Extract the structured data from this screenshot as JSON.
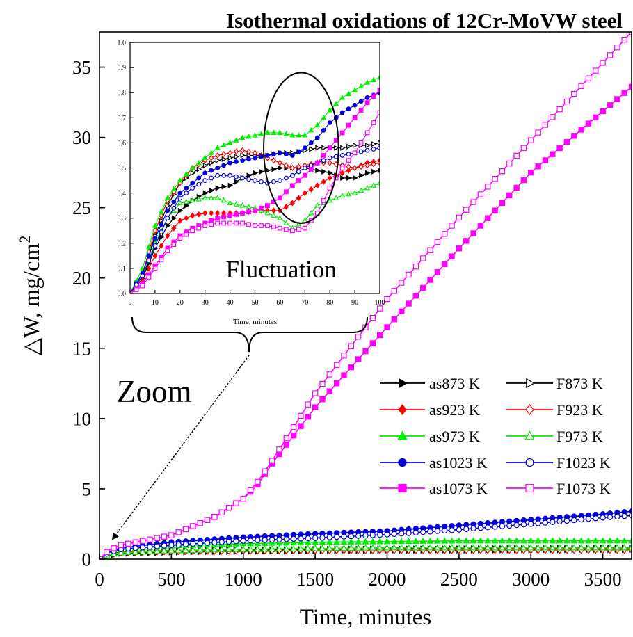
{
  "chart_data": [
    {
      "type": "line",
      "title": "Isothermal oxidations of 12Cr-MoVW steel",
      "xlabel": "Time, minutes",
      "ylabel": "△W, mg/cm",
      "ylabel_sup": "2",
      "xlim": [
        0,
        3700
      ],
      "ylim": [
        0,
        37.5
      ],
      "xticks": [
        0,
        500,
        1000,
        1500,
        2000,
        2500,
        3000,
        3500
      ],
      "yticks": [
        0,
        5,
        10,
        15,
        20,
        25,
        30,
        35
      ],
      "legend_position": "lower-right",
      "series": [
        {
          "name": "as873 K",
          "color": "#000000",
          "marker": "triangle-right",
          "filled": true,
          "x": [
            0,
            60,
            150,
            500,
            1000,
            1500,
            2000,
            2500,
            3000,
            3700
          ],
          "y": [
            0,
            0.25,
            0.4,
            0.5,
            0.55,
            0.6,
            0.62,
            0.64,
            0.66,
            0.68
          ]
        },
        {
          "name": "F873 K",
          "color": "#000000",
          "marker": "triangle-right",
          "filled": false,
          "x": [
            0,
            60,
            150,
            500,
            1000,
            1500,
            2000,
            2500,
            3000,
            3700
          ],
          "y": [
            0,
            0.3,
            0.5,
            0.6,
            0.66,
            0.7,
            0.72,
            0.74,
            0.76,
            0.78
          ]
        },
        {
          "name": "as923 K",
          "color": "#ff0000",
          "marker": "diamond",
          "filled": true,
          "x": [
            0,
            60,
            150,
            500,
            1000,
            1500,
            2000,
            2500,
            3000,
            3700
          ],
          "y": [
            0,
            0.3,
            0.45,
            0.55,
            0.6,
            0.64,
            0.67,
            0.7,
            0.72,
            0.74
          ]
        },
        {
          "name": "F923 K",
          "color": "#ff0000",
          "marker": "diamond",
          "filled": false,
          "x": [
            0,
            60,
            150,
            500,
            1000,
            1500,
            2000,
            2500,
            3000,
            3700
          ],
          "y": [
            0,
            0.3,
            0.5,
            0.56,
            0.6,
            0.62,
            0.63,
            0.64,
            0.64,
            0.65
          ]
        },
        {
          "name": "as973 K",
          "color": "#00ee00",
          "marker": "triangle-up",
          "filled": true,
          "x": [
            0,
            60,
            150,
            500,
            1000,
            1500,
            2000,
            2500,
            3000,
            3700
          ],
          "y": [
            0,
            0.45,
            0.7,
            0.95,
            1.1,
            1.2,
            1.25,
            1.3,
            1.3,
            1.3
          ]
        },
        {
          "name": "F973 K",
          "color": "#00ee00",
          "marker": "triangle-up",
          "filled": false,
          "x": [
            0,
            60,
            150,
            500,
            1000,
            1500,
            2000,
            2500,
            3000,
            3700
          ],
          "y": [
            0,
            0.3,
            0.45,
            0.6,
            0.7,
            0.75,
            0.8,
            0.8,
            0.8,
            0.8
          ]
        },
        {
          "name": "as1023 K",
          "color": "#0000dd",
          "marker": "circle",
          "filled": true,
          "x": [
            0,
            60,
            150,
            500,
            1000,
            1500,
            2000,
            2500,
            3000,
            3500,
            3700
          ],
          "y": [
            0,
            0.5,
            0.8,
            1.2,
            1.55,
            1.8,
            2.0,
            2.4,
            2.8,
            3.2,
            3.4
          ]
        },
        {
          "name": "F1023 K",
          "color": "#0000dd",
          "marker": "circle",
          "filled": false,
          "x": [
            0,
            60,
            150,
            500,
            1000,
            1500,
            2000,
            2500,
            3000,
            3500,
            3700
          ],
          "y": [
            0,
            0.45,
            0.7,
            1.0,
            1.3,
            1.5,
            1.75,
            2.1,
            2.5,
            2.95,
            3.1
          ]
        },
        {
          "name": "as1073 K",
          "color": "#ff00ff",
          "marker": "square",
          "filled": true,
          "x": [
            0,
            60,
            150,
            500,
            800,
            1000,
            1100,
            1200,
            1500,
            2000,
            2500,
            3000,
            3700
          ],
          "y": [
            0,
            0.6,
            1.0,
            1.7,
            3.0,
            4.3,
            5.3,
            6.8,
            10.8,
            16.5,
            22.1,
            27.5,
            33.6
          ]
        },
        {
          "name": "F1073 K",
          "color": "#ff00ff",
          "marker": "square",
          "filled": false,
          "x": [
            0,
            60,
            150,
            500,
            800,
            1000,
            1100,
            1200,
            1500,
            2000,
            2500,
            3000,
            3700
          ],
          "y": [
            0,
            0.6,
            1.0,
            1.7,
            3.0,
            4.3,
            5.5,
            7.0,
            11.8,
            18.5,
            24.3,
            29.8,
            37.5
          ]
        }
      ]
    },
    {
      "type": "line",
      "title": "",
      "xlabel": "Time, minutes",
      "ylabel": "",
      "xlim": [
        0,
        100
      ],
      "ylim": [
        0,
        1.0
      ],
      "xticks": [
        0,
        10,
        20,
        30,
        40,
        50,
        60,
        70,
        80,
        90,
        100
      ],
      "yticks": [
        "0.0",
        "0.1",
        "0.2",
        "0.3",
        "0.4",
        "0.5",
        "0.6",
        "0.7",
        "0.8",
        "0.9",
        "1.0"
      ],
      "annotations": [
        "Fluctuation"
      ],
      "series": [
        {
          "name": "as873 K",
          "color": "#000000",
          "marker": "triangle-right",
          "filled": true,
          "x": [
            0,
            5,
            10,
            15,
            20,
            25,
            30,
            35,
            40,
            45,
            50,
            55,
            60,
            65,
            70,
            75,
            80,
            85,
            90,
            95,
            100
          ],
          "y": [
            0,
            0.06,
            0.18,
            0.27,
            0.33,
            0.37,
            0.4,
            0.42,
            0.43,
            0.46,
            0.48,
            0.49,
            0.5,
            0.5,
            0.5,
            0.49,
            0.48,
            0.46,
            0.46,
            0.48,
            0.49
          ]
        },
        {
          "name": "F873 K",
          "color": "#000000",
          "marker": "triangle-right",
          "filled": false,
          "x": [
            0,
            5,
            10,
            15,
            20,
            25,
            30,
            35,
            40,
            45,
            50,
            55,
            60,
            65,
            70,
            75,
            80,
            85,
            90,
            95,
            100
          ],
          "y": [
            0,
            0.08,
            0.23,
            0.35,
            0.44,
            0.48,
            0.51,
            0.53,
            0.54,
            0.55,
            0.55,
            0.55,
            0.56,
            0.56,
            0.57,
            0.58,
            0.58,
            0.58,
            0.59,
            0.59,
            0.6
          ]
        },
        {
          "name": "as923 K",
          "color": "#ff0000",
          "marker": "diamond",
          "filled": true,
          "x": [
            0,
            5,
            10,
            15,
            20,
            25,
            30,
            35,
            40,
            45,
            50,
            55,
            60,
            65,
            70,
            75,
            80,
            85,
            90,
            95,
            100
          ],
          "y": [
            0,
            0.05,
            0.15,
            0.23,
            0.29,
            0.31,
            0.32,
            0.32,
            0.32,
            0.32,
            0.33,
            0.33,
            0.33,
            0.36,
            0.4,
            0.43,
            0.46,
            0.48,
            0.5,
            0.52,
            0.53
          ]
        },
        {
          "name": "F923 K",
          "color": "#ff0000",
          "marker": "diamond",
          "filled": false,
          "x": [
            0,
            5,
            10,
            15,
            20,
            25,
            30,
            35,
            40,
            45,
            50,
            55,
            60,
            65,
            70,
            75,
            80,
            85,
            90,
            95,
            100
          ],
          "y": [
            0,
            0.08,
            0.25,
            0.37,
            0.44,
            0.5,
            0.53,
            0.55,
            0.56,
            0.57,
            0.56,
            0.54,
            0.52,
            0.5,
            0.51,
            0.52,
            0.52,
            0.51,
            0.5,
            0.51,
            0.52
          ]
        },
        {
          "name": "as973 K",
          "color": "#00ee00",
          "marker": "triangle-up",
          "filled": true,
          "x": [
            0,
            5,
            10,
            15,
            20,
            25,
            30,
            35,
            40,
            45,
            50,
            55,
            60,
            65,
            70,
            75,
            80,
            85,
            90,
            95,
            100
          ],
          "y": [
            0,
            0.1,
            0.27,
            0.38,
            0.45,
            0.5,
            0.54,
            0.58,
            0.6,
            0.62,
            0.63,
            0.64,
            0.64,
            0.63,
            0.63,
            0.67,
            0.73,
            0.78,
            0.81,
            0.84,
            0.86
          ]
        },
        {
          "name": "F973 K",
          "color": "#00ee00",
          "marker": "triangle-up",
          "filled": false,
          "x": [
            0,
            5,
            10,
            15,
            20,
            25,
            30,
            35,
            40,
            45,
            50,
            55,
            60,
            65,
            70,
            75,
            80,
            85,
            90,
            95,
            100
          ],
          "y": [
            0,
            0.07,
            0.2,
            0.3,
            0.36,
            0.37,
            0.38,
            0.38,
            0.36,
            0.35,
            0.34,
            0.32,
            0.3,
            0.26,
            0.29,
            0.35,
            0.37,
            0.39,
            0.4,
            0.42,
            0.44
          ]
        },
        {
          "name": "as1023 K",
          "color": "#0000dd",
          "marker": "circle",
          "filled": true,
          "x": [
            0,
            5,
            10,
            15,
            20,
            25,
            30,
            35,
            40,
            45,
            50,
            55,
            60,
            65,
            70,
            75,
            80,
            85,
            90,
            95,
            100
          ],
          "y": [
            0,
            0.08,
            0.22,
            0.33,
            0.4,
            0.44,
            0.48,
            0.5,
            0.52,
            0.53,
            0.54,
            0.55,
            0.56,
            0.55,
            0.58,
            0.62,
            0.68,
            0.72,
            0.75,
            0.78,
            0.8
          ]
        },
        {
          "name": "F1023 K",
          "color": "#0000dd",
          "marker": "circle",
          "filled": false,
          "x": [
            0,
            5,
            10,
            15,
            20,
            25,
            30,
            35,
            40,
            45,
            50,
            55,
            60,
            65,
            70,
            75,
            80,
            85,
            90,
            95,
            100
          ],
          "y": [
            0,
            0.07,
            0.19,
            0.3,
            0.38,
            0.42,
            0.45,
            0.47,
            0.47,
            0.46,
            0.45,
            0.44,
            0.45,
            0.47,
            0.5,
            0.52,
            0.54,
            0.55,
            0.56,
            0.57,
            0.58
          ]
        },
        {
          "name": "as1073 K",
          "color": "#ff00ff",
          "marker": "square",
          "filled": true,
          "x": [
            0,
            5,
            10,
            15,
            20,
            25,
            30,
            35,
            40,
            45,
            50,
            55,
            60,
            65,
            70,
            75,
            80,
            85,
            90,
            95,
            100
          ],
          "y": [
            0,
            0.04,
            0.11,
            0.18,
            0.23,
            0.26,
            0.28,
            0.3,
            0.31,
            0.32,
            0.33,
            0.35,
            0.38,
            0.43,
            0.47,
            0.52,
            0.58,
            0.64,
            0.7,
            0.76,
            0.81
          ]
        },
        {
          "name": "F1073 K",
          "color": "#ff00ff",
          "marker": "square",
          "filled": false,
          "x": [
            0,
            5,
            10,
            15,
            20,
            25,
            30,
            35,
            40,
            45,
            50,
            55,
            60,
            65,
            70,
            75,
            80,
            85,
            90,
            95,
            100
          ],
          "y": [
            0,
            0.03,
            0.1,
            0.17,
            0.22,
            0.25,
            0.27,
            0.28,
            0.28,
            0.28,
            0.27,
            0.27,
            0.26,
            0.25,
            0.26,
            0.32,
            0.42,
            0.5,
            0.56,
            0.64,
            0.72
          ]
        }
      ]
    }
  ],
  "annotations": {
    "zoom_label": "Zoom",
    "fluctuation_label": "Fluctuation"
  }
}
